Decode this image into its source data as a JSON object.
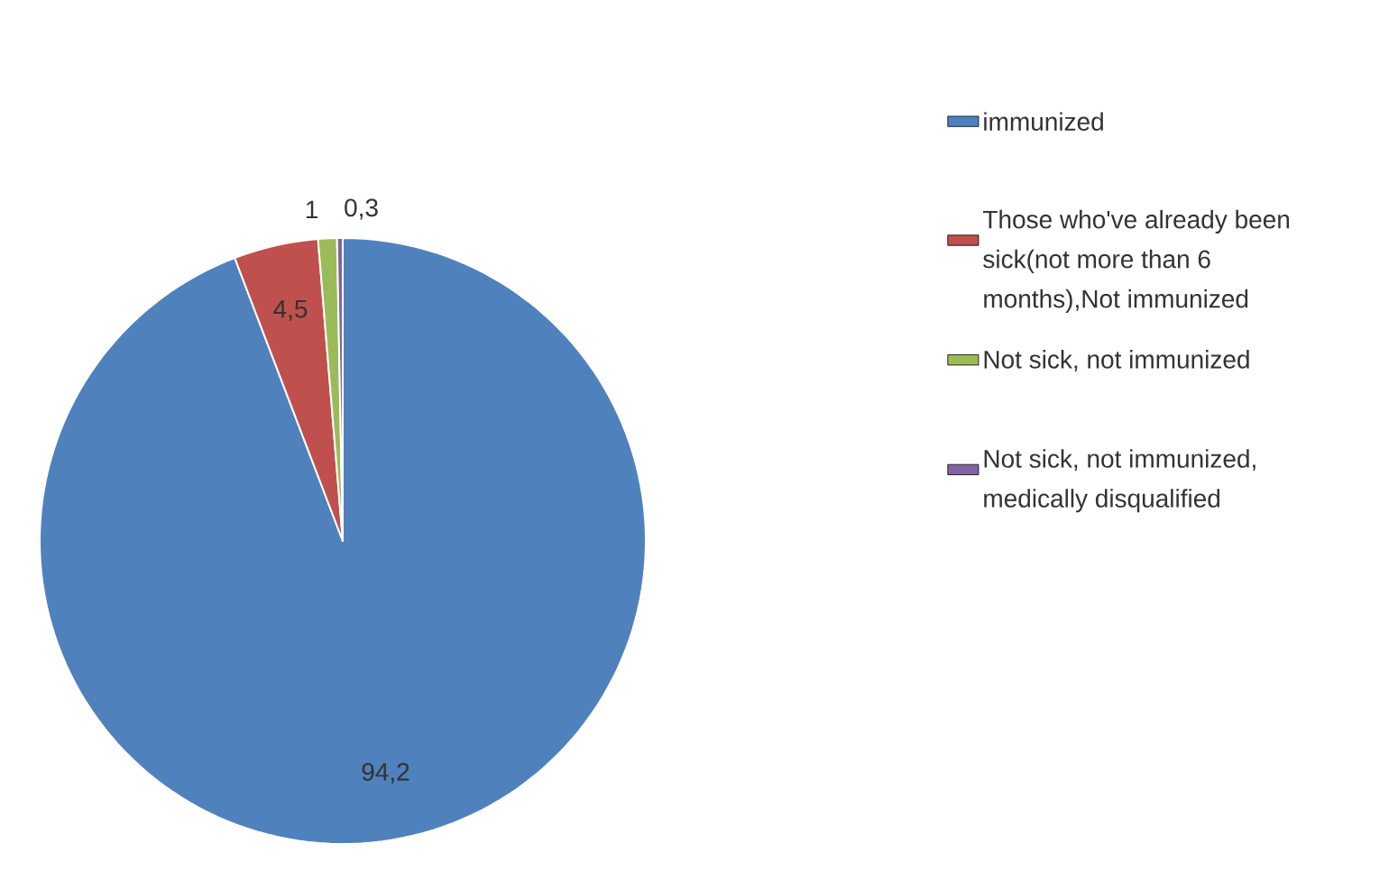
{
  "chart_data": {
    "type": "pie",
    "categories": [
      "immunized",
      "Those who've already been sick(not more than 6 months),Not immunized",
      "Not sick, not immunized",
      "Not sick, not immunized, medically disqualified"
    ],
    "values": [
      94.2,
      4.5,
      1,
      0.3
    ],
    "colors": [
      "#4f81bd",
      "#c0504d",
      "#9bbb59",
      "#8064a2"
    ],
    "value_labels": [
      "94,2",
      "4,5",
      "1",
      "0,3"
    ],
    "legend": "right"
  }
}
